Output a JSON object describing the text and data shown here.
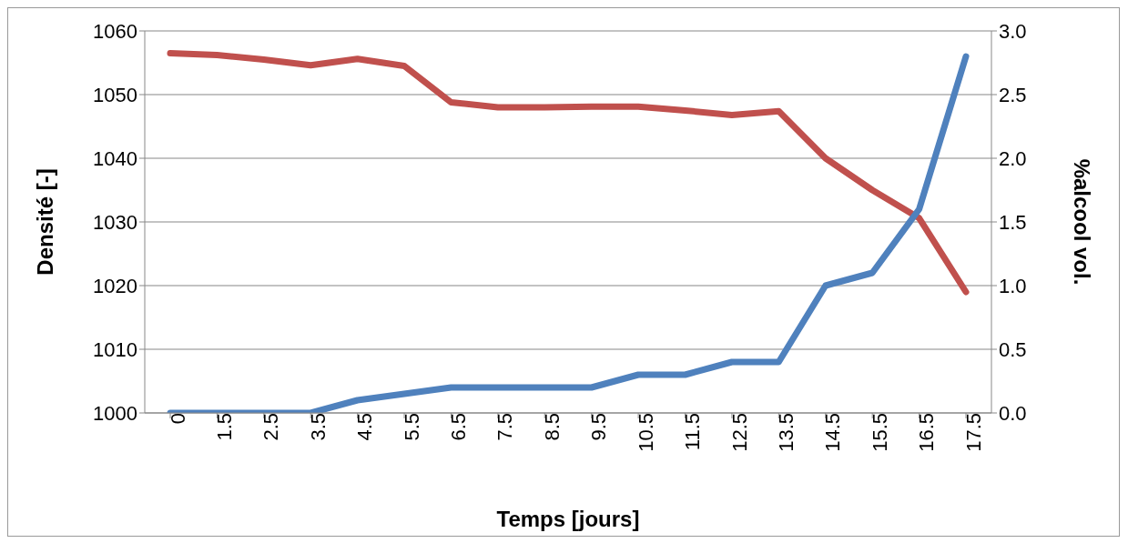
{
  "chart_data": {
    "type": "line",
    "xlabel": "Temps [jours]",
    "ylabel": "Densité [-]",
    "y2label": "%alcool vol.",
    "categories": [
      "0",
      "1.5",
      "2.5",
      "3.5",
      "4.5",
      "5.5",
      "6.5",
      "7.5",
      "8.5",
      "9.5",
      "10.5",
      "11.5",
      "12.5",
      "13.5",
      "14.5",
      "15.5",
      "16.5",
      "17.5"
    ],
    "series": [
      {
        "color": "#c0504d",
        "values": [
          1056.5,
          1056.2,
          1055.5,
          1054.6,
          1055.6,
          1054.5,
          1048.8,
          1048,
          1048,
          1048.1,
          1048.1,
          1047.5,
          1046.8,
          1047.4,
          1040,
          1035,
          1030.6,
          1019
        ]
      },
      {
        "color": "#4f81bd",
        "axis": "y2",
        "values": [
          0,
          0,
          0,
          0,
          0.1,
          0.15,
          0.2,
          0.2,
          0.2,
          0.2,
          0.3,
          0.3,
          0.4,
          0.4,
          1.0,
          1.1,
          1.6,
          2.8
        ]
      }
    ],
    "ylim": [
      1000,
      1060
    ],
    "yticks": [
      1000,
      1010,
      1020,
      1030,
      1040,
      1050,
      1060
    ],
    "y2lim": [
      0,
      3
    ],
    "y2ticks": [
      {
        "value": 0,
        "label": "0.0"
      },
      {
        "value": 0.5,
        "label": "0.5"
      },
      {
        "value": 1,
        "label": "1.0"
      },
      {
        "value": 1.5,
        "label": "1.5"
      },
      {
        "value": 2,
        "label": "2.0"
      },
      {
        "value": 2.5,
        "label": "2.5"
      },
      {
        "value": 3,
        "label": "3.0"
      }
    ],
    "grid": "y",
    "marker": "none",
    "line_style": "solid",
    "legend": false
  }
}
